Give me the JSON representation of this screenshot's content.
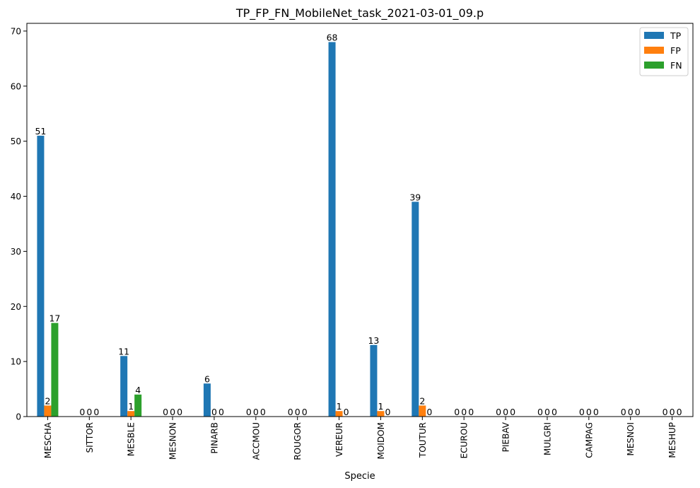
{
  "chart_data": {
    "type": "bar",
    "title": "TP_FP_FN_MobileNet_task_2021-03-01_09.p",
    "xlabel": "Specie",
    "ylabel": "",
    "ylim": [
      0,
      71.4
    ],
    "yticks": [
      0,
      10,
      20,
      30,
      40,
      50,
      60,
      70
    ],
    "grid": false,
    "legend_position": "top-right",
    "categories": [
      "MESCHA",
      "SITTOR",
      "MESBLE",
      "MESNON",
      "PINARB",
      "ACCMOU",
      "ROUGOR",
      "VEREUR",
      "MOIDOM",
      "TOUTUR",
      "ECUROU",
      "PIEBAV",
      "MULGRI",
      "CAMPAG",
      "MESNOI",
      "MESHUP"
    ],
    "series": [
      {
        "name": "TP",
        "color": "#1f77b4",
        "values": [
          51,
          0,
          11,
          0,
          6,
          0,
          0,
          68,
          13,
          39,
          0,
          0,
          0,
          0,
          0,
          0
        ]
      },
      {
        "name": "FP",
        "color": "#ff7f0e",
        "values": [
          2,
          0,
          1,
          0,
          0,
          0,
          0,
          1,
          1,
          2,
          0,
          0,
          0,
          0,
          0,
          0
        ]
      },
      {
        "name": "FN",
        "color": "#2ca02c",
        "values": [
          17,
          0,
          4,
          0,
          0,
          0,
          0,
          0,
          0,
          0,
          0,
          0,
          0,
          0,
          0,
          0
        ]
      }
    ]
  }
}
